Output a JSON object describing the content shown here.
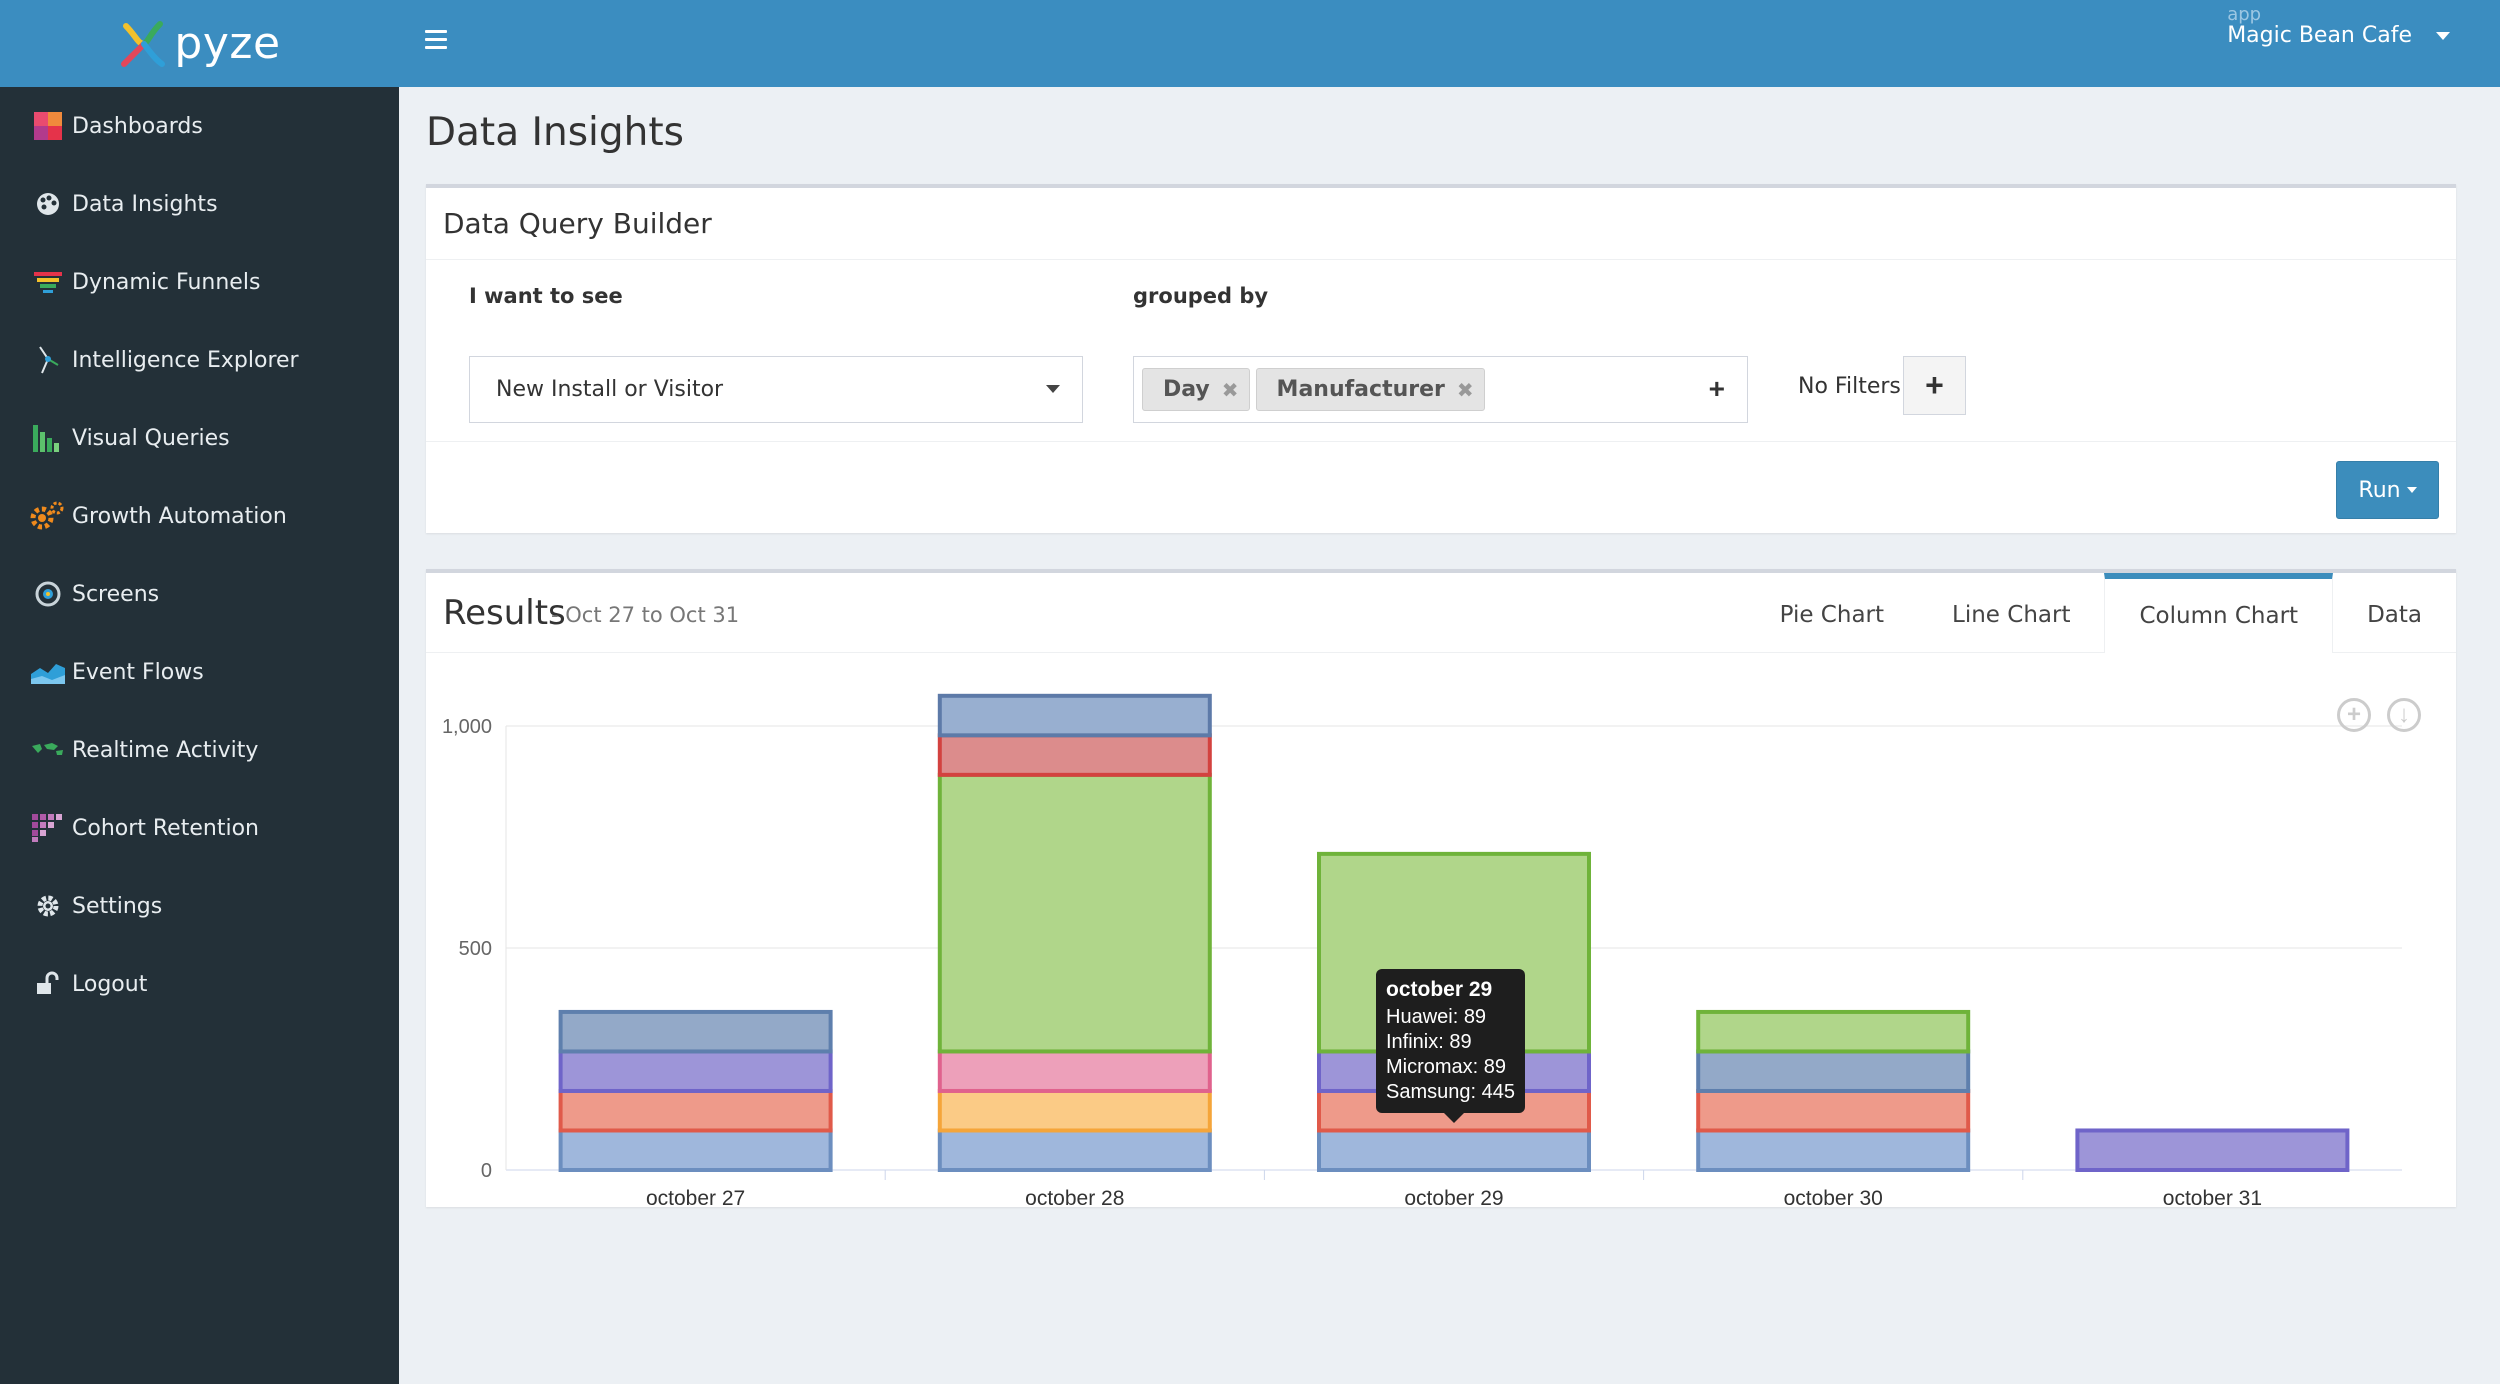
{
  "brand": {
    "name": "pyze"
  },
  "topbar": {
    "app_caption": "app",
    "app_name": "Magic Bean Cafe"
  },
  "sidebar": {
    "items": [
      {
        "label": "Dashboards",
        "icon": "dashboards-icon"
      },
      {
        "label": "Data Insights",
        "icon": "palette-icon"
      },
      {
        "label": "Dynamic Funnels",
        "icon": "funnel-icon"
      },
      {
        "label": "Intelligence Explorer",
        "icon": "explorer-icon"
      },
      {
        "label": "Visual Queries",
        "icon": "bar-chart-icon"
      },
      {
        "label": "Growth Automation",
        "icon": "gears-icon"
      },
      {
        "label": "Screens",
        "icon": "screens-icon"
      },
      {
        "label": "Event Flows",
        "icon": "area-chart-icon"
      },
      {
        "label": "Realtime Activity",
        "icon": "world-map-icon"
      },
      {
        "label": "Cohort Retention",
        "icon": "cohort-grid-icon"
      },
      {
        "label": "Settings",
        "icon": "gear-icon"
      },
      {
        "label": "Logout",
        "icon": "unlock-icon"
      }
    ]
  },
  "page": {
    "title": "Data Insights"
  },
  "query_builder": {
    "title": "Data Query Builder",
    "want_label": "I want to see",
    "grouped_label": "grouped by",
    "selected_metric": "New Install or Visitor",
    "group_tags": [
      "Day",
      "Manufacturer"
    ],
    "add_symbol": "+",
    "filters_text": "No Filters",
    "filter_add_symbol": "+",
    "run_label": "Run"
  },
  "results": {
    "title": "Results",
    "range": "- Oct 27 to Oct 31",
    "tabs": [
      "Pie Chart",
      "Line Chart",
      "Column Chart",
      "Data"
    ],
    "active_tab": "Column Chart"
  },
  "tooltip": {
    "title": "october 29",
    "lines": [
      "Huawei: 89",
      "Infinix: 89",
      "Micromax: 89",
      "Samsung: 445"
    ]
  },
  "chart_data": {
    "type": "bar",
    "stacked": true,
    "categories": [
      "october 27",
      "october 28",
      "october 29",
      "october 30",
      "october 31"
    ],
    "ylim": [
      0,
      1000
    ],
    "yticks": [
      0,
      500,
      1000
    ],
    "ytick_labels": [
      "0",
      "500",
      "1,000"
    ],
    "grid": true,
    "series": [
      {
        "values": [
          89,
          89,
          89,
          89,
          0
        ],
        "color": "#6c8ebf",
        "fill": "#9fb7dc"
      },
      {
        "values": [
          89,
          0,
          89,
          89,
          0
        ],
        "color": "#e05a4a",
        "fill": "#ee9a8a"
      },
      {
        "values": [
          89,
          0,
          89,
          0,
          89
        ],
        "color": "#6f64c9",
        "fill": "#9d95d8"
      },
      {
        "values": [
          89,
          0,
          0,
          89,
          0
        ],
        "color": "#5e7fad",
        "fill": "#93a9c8"
      },
      {
        "values": [
          0,
          89,
          0,
          0,
          0
        ],
        "color": "#f5a53a",
        "fill": "#fbcb86"
      },
      {
        "values": [
          0,
          89,
          0,
          0,
          0
        ],
        "color": "#e0628d",
        "fill": "#eda0ba"
      },
      {
        "values": [
          0,
          623,
          445,
          89,
          0
        ],
        "color": "#6fb33a",
        "fill": "#b0d68a"
      },
      {
        "values": [
          0,
          89,
          0,
          0,
          0
        ],
        "color": "#d3423f",
        "fill": "#dc8c8c"
      },
      {
        "values": [
          0,
          89,
          0,
          0,
          0
        ],
        "color": "#5d7aa8",
        "fill": "#98afd0"
      }
    ]
  }
}
